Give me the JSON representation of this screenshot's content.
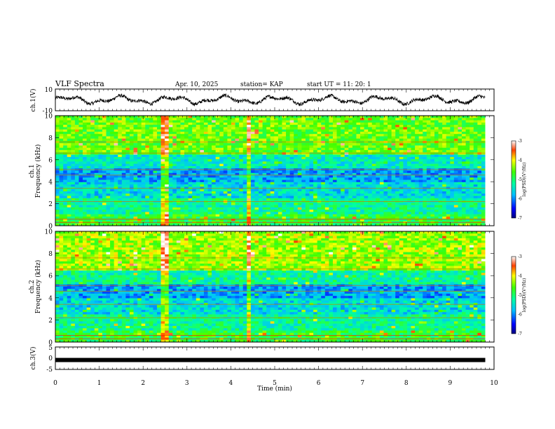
{
  "header": {
    "title": "VLF Spectra",
    "date": "Apr. 10, 2025",
    "station": "station= KAP",
    "start": "start  UT  =   11: 20: 1"
  },
  "chart_data": [
    {
      "type": "line",
      "panel": "ch1-waveform",
      "ylabel": "ch.1(V)",
      "ylim": [
        -10,
        10
      ],
      "y_ticks": [
        "10",
        "-10"
      ],
      "x_range_min": [
        0,
        9.8
      ],
      "description_values": "noisy waveform oscillating roughly between -4 and 4 V"
    },
    {
      "type": "heatmap",
      "panel": "ch1-spectrogram",
      "ylabel_line1": "ch.1",
      "ylabel_line2": "Frequency  (kHz)",
      "ylim": [
        0,
        10
      ],
      "y_ticks": [
        "0",
        "2",
        "4",
        "6",
        "8",
        "10"
      ],
      "colorbar": {
        "label": "log(PSD)(V²/Hz)",
        "range": [
          -7,
          -3
        ],
        "ticks": [
          "-3",
          "-4",
          "-5",
          "-6",
          "-7"
        ]
      },
      "impulsive_events_min": [
        2.5,
        4.4
      ]
    },
    {
      "type": "heatmap",
      "panel": "ch2-spectrogram",
      "ylabel_line1": "ch.2",
      "ylabel_line2": "Frequency  (kHz)",
      "ylim": [
        0,
        10
      ],
      "y_ticks": [
        "0",
        "2",
        "4",
        "6",
        "8",
        "10"
      ],
      "colorbar": {
        "label": "log(PSD)(V²/Hz)",
        "range": [
          -7,
          -3
        ],
        "ticks": [
          "-3",
          "-4",
          "-5",
          "-6",
          "-7"
        ]
      },
      "impulsive_events_min": [
        2.5,
        4.4
      ]
    },
    {
      "type": "line",
      "panel": "ch3-waveform",
      "ylabel": "ch.3(V)",
      "ylim": [
        -5,
        5
      ],
      "y_ticks": [
        "5",
        "0",
        "-5"
      ],
      "x": [
        0,
        9.8
      ],
      "values": [
        -0.8,
        -0.8
      ]
    }
  ],
  "x_axis": {
    "label": "Time  (min)",
    "ticks": [
      "0",
      "1",
      "2",
      "3",
      "4",
      "5",
      "6",
      "7",
      "8",
      "9",
      "10"
    ],
    "range": [
      0,
      10
    ]
  }
}
